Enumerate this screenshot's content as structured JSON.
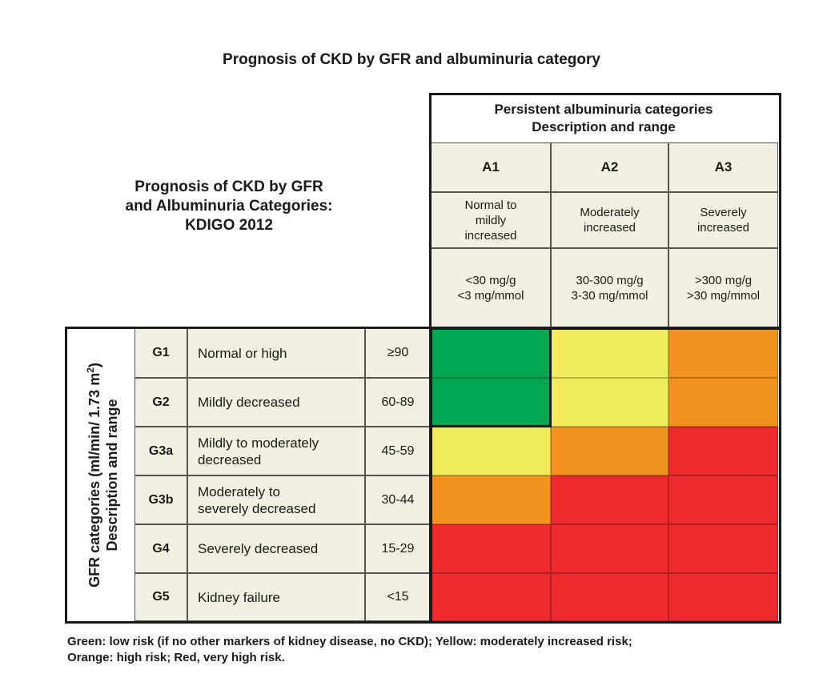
{
  "page_title": "Prognosis of CKD by GFR and albuminuria category",
  "table_title": [
    "Prognosis of CKD by GFR",
    "and Albuminuria Categories:",
    "KDIGO 2012"
  ],
  "albuminuria_header": [
    "Persistent albuminuria categories",
    "Description and range"
  ],
  "gfr_axis_label": [
    "GFR categories (ml/min/ 1.73 m",
    "2",
    ")",
    "Description and range"
  ],
  "albuminuria": [
    {
      "code": "A1",
      "desc": [
        "Normal to",
        "mildly",
        "increased"
      ],
      "range": [
        "<30 mg/g",
        "<3 mg/mmol"
      ]
    },
    {
      "code": "A2",
      "desc": [
        "Moderately",
        "increased"
      ],
      "range": [
        "30-300 mg/g",
        "3-30 mg/mmol"
      ]
    },
    {
      "code": "A3",
      "desc": [
        "Severely",
        "increased"
      ],
      "range": [
        ">300 mg/g",
        ">30 mg/mmol"
      ]
    }
  ],
  "gfr": [
    {
      "code": "G1",
      "desc": [
        "Normal or high"
      ],
      "range": "≥90"
    },
    {
      "code": "G2",
      "desc": [
        "Mildly decreased"
      ],
      "range": "60-89"
    },
    {
      "code": "G3a",
      "desc": [
        "Mildly to moderately",
        "decreased"
      ],
      "range": "45-59"
    },
    {
      "code": "G3b",
      "desc": [
        "Moderately to",
        "severely decreased"
      ],
      "range": "30-44"
    },
    {
      "code": "G4",
      "desc": [
        "Severely decreased"
      ],
      "range": "15-29"
    },
    {
      "code": "G5",
      "desc": [
        "Kidney failure"
      ],
      "range": "<15"
    }
  ],
  "risk_colors": {
    "green": "#00a650",
    "yellow": "#f3ec5a",
    "orange": "#f3921e",
    "red": "#ed2a2e"
  },
  "chart_data": {
    "type": "heatmap",
    "title": "Prognosis of CKD by GFR and albuminuria category",
    "x_categories": [
      "A1",
      "A2",
      "A3"
    ],
    "y_categories": [
      "G1",
      "G2",
      "G3a",
      "G3b",
      "G4",
      "G5"
    ],
    "values": [
      [
        "green",
        "yellow",
        "orange"
      ],
      [
        "green",
        "yellow",
        "orange"
      ],
      [
        "yellow",
        "orange",
        "red"
      ],
      [
        "orange",
        "red",
        "red"
      ],
      [
        "red",
        "red",
        "red"
      ],
      [
        "red",
        "red",
        "red"
      ]
    ]
  },
  "footnote": [
    "Green: low risk (if no other markers of kidney disease, no CKD); Yellow: moderately increased risk;",
    "Orange: high risk; Red, very high risk."
  ]
}
